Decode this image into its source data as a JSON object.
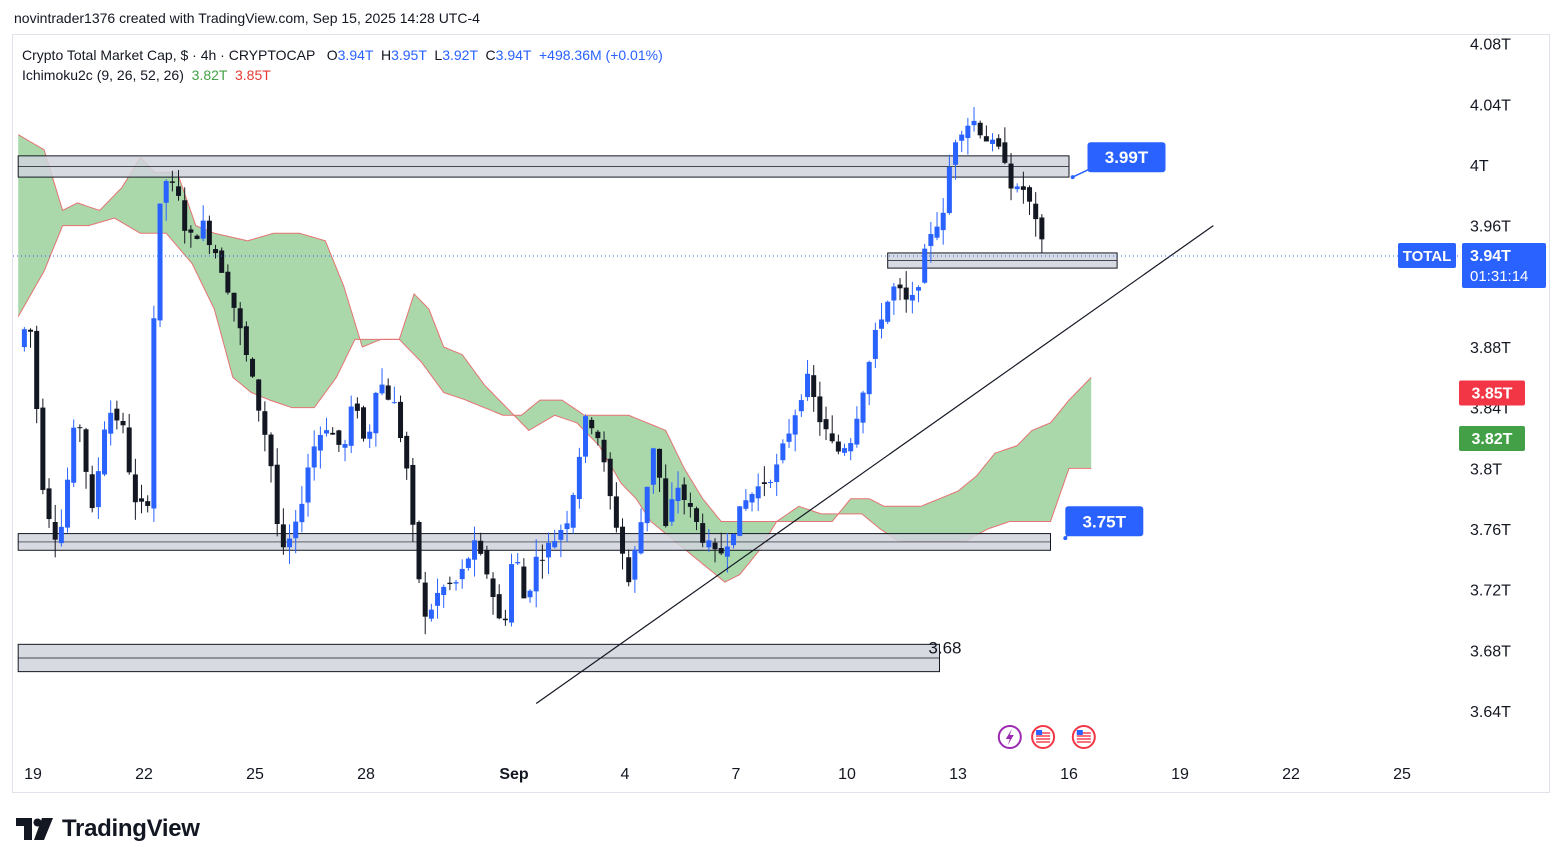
{
  "author_line": "novintrader1376 created with TradingView.com, Sep 15, 2025 14:28 UTC-4",
  "legend": {
    "symbol": "Crypto Total Market Cap, $ · 4h · CRYPTOCAP",
    "o_label": "O",
    "o_value": "3.94T",
    "h_label": "H",
    "h_value": "3.95T",
    "l_label": "L",
    "l_value": "3.92T",
    "c_label": "C",
    "c_value": "3.94T",
    "change": "+498.36M (+0.01%)",
    "indicator": "Ichimoku2c (9, 26, 52, 26)",
    "ind_v1": "3.82T",
    "ind_v2": "3.85T"
  },
  "brand": "TradingView",
  "colors": {
    "up": "#2962ff",
    "down": "#131722",
    "cloud_fill": "#a5d6a7",
    "cloud_edge": "#e57373",
    "callout": "#2962ff",
    "badge_red": "#f23645",
    "badge_green": "#43a047"
  },
  "chart_data": {
    "type": "candlestick",
    "ylim": [
      3.625,
      4.09
    ],
    "y_ticks": [
      {
        "v": 4.08,
        "label": "4.08T"
      },
      {
        "v": 4.04,
        "label": "4.04T"
      },
      {
        "v": 4.0,
        "label": "4T"
      },
      {
        "v": 3.96,
        "label": "3.96T"
      },
      {
        "v": 3.88,
        "label": "3.88T"
      },
      {
        "v": 3.84,
        "label": "3.84T"
      },
      {
        "v": 3.8,
        "label": "3.8T"
      },
      {
        "v": 3.76,
        "label": "3.76T"
      },
      {
        "v": 3.72,
        "label": "3.72T"
      },
      {
        "v": 3.68,
        "label": "3.68T"
      },
      {
        "v": 3.64,
        "label": "3.64T"
      }
    ],
    "x_ticks": [
      {
        "t": 19,
        "label": "19"
      },
      {
        "t": 22,
        "label": "22"
      },
      {
        "t": 25,
        "label": "25"
      },
      {
        "t": 28,
        "label": "28"
      },
      {
        "t": 32,
        "label": "Sep"
      },
      {
        "t": 35,
        "label": "4"
      },
      {
        "t": 38,
        "label": "7"
      },
      {
        "t": 41,
        "label": "10"
      },
      {
        "t": 44,
        "label": "13"
      },
      {
        "t": 47,
        "label": "16"
      },
      {
        "t": 50,
        "label": "19"
      },
      {
        "t": 53,
        "label": "22"
      },
      {
        "t": 56,
        "label": "25"
      }
    ],
    "x_unit": "days since Aug 0 (Aug 19 = 19, Sep 1 = 32)",
    "xlim": [
      18.6,
      57.0
    ],
    "anchors": [
      {
        "t": 18.6,
        "p": 3.88
      },
      {
        "t": 18.9,
        "p": 3.9
      },
      {
        "t": 19.3,
        "p": 3.78
      },
      {
        "t": 19.7,
        "p": 3.75
      },
      {
        "t": 20.2,
        "p": 3.84
      },
      {
        "t": 20.6,
        "p": 3.77
      },
      {
        "t": 21.0,
        "p": 3.84
      },
      {
        "t": 21.4,
        "p": 3.83
      },
      {
        "t": 21.8,
        "p": 3.77
      },
      {
        "t": 22.1,
        "p": 3.78
      },
      {
        "t": 22.35,
        "p": 3.96
      },
      {
        "t": 22.6,
        "p": 3.99
      },
      {
        "t": 22.9,
        "p": 3.98
      },
      {
        "t": 23.2,
        "p": 3.95
      },
      {
        "t": 23.6,
        "p": 3.96
      },
      {
        "t": 24.0,
        "p": 3.94
      },
      {
        "t": 24.4,
        "p": 3.91
      },
      {
        "t": 24.8,
        "p": 3.87
      },
      {
        "t": 25.1,
        "p": 3.84
      },
      {
        "t": 25.4,
        "p": 3.81
      },
      {
        "t": 25.7,
        "p": 3.74
      },
      {
        "t": 26.1,
        "p": 3.76
      },
      {
        "t": 26.5,
        "p": 3.81
      },
      {
        "t": 26.9,
        "p": 3.83
      },
      {
        "t": 27.4,
        "p": 3.81
      },
      {
        "t": 27.7,
        "p": 3.85
      },
      {
        "t": 28.0,
        "p": 3.81
      },
      {
        "t": 28.3,
        "p": 3.86
      },
      {
        "t": 28.8,
        "p": 3.84
      },
      {
        "t": 29.1,
        "p": 3.8
      },
      {
        "t": 29.3,
        "p": 3.75
      },
      {
        "t": 29.6,
        "p": 3.7
      },
      {
        "t": 30.0,
        "p": 3.72
      },
      {
        "t": 30.5,
        "p": 3.725
      },
      {
        "t": 30.9,
        "p": 3.75
      },
      {
        "t": 31.3,
        "p": 3.73
      },
      {
        "t": 31.7,
        "p": 3.69
      },
      {
        "t": 32.0,
        "p": 3.75
      },
      {
        "t": 32.3,
        "p": 3.71
      },
      {
        "t": 32.6,
        "p": 3.74
      },
      {
        "t": 33.0,
        "p": 3.75
      },
      {
        "t": 33.5,
        "p": 3.77
      },
      {
        "t": 33.9,
        "p": 3.83
      },
      {
        "t": 34.2,
        "p": 3.83
      },
      {
        "t": 34.6,
        "p": 3.78
      },
      {
        "t": 34.8,
        "p": 3.76
      },
      {
        "t": 35.1,
        "p": 3.725
      },
      {
        "t": 35.4,
        "p": 3.76
      },
      {
        "t": 35.8,
        "p": 3.82
      },
      {
        "t": 36.1,
        "p": 3.76
      },
      {
        "t": 36.4,
        "p": 3.79
      },
      {
        "t": 36.8,
        "p": 3.77
      },
      {
        "t": 37.2,
        "p": 3.75
      },
      {
        "t": 37.5,
        "p": 3.74
      },
      {
        "t": 37.9,
        "p": 3.76
      },
      {
        "t": 38.3,
        "p": 3.78
      },
      {
        "t": 38.7,
        "p": 3.79
      },
      {
        "t": 39.1,
        "p": 3.8
      },
      {
        "t": 39.5,
        "p": 3.83
      },
      {
        "t": 39.9,
        "p": 3.86
      },
      {
        "t": 40.3,
        "p": 3.83
      },
      {
        "t": 40.7,
        "p": 3.81
      },
      {
        "t": 41.1,
        "p": 3.82
      },
      {
        "t": 41.5,
        "p": 3.86
      },
      {
        "t": 41.9,
        "p": 3.9
      },
      {
        "t": 42.3,
        "p": 3.92
      },
      {
        "t": 42.7,
        "p": 3.905
      },
      {
        "t": 43.0,
        "p": 3.93
      },
      {
        "t": 43.3,
        "p": 3.96
      },
      {
        "t": 43.6,
        "p": 3.965
      },
      {
        "t": 43.85,
        "p": 4.015
      },
      {
        "t": 44.1,
        "p": 4.025
      },
      {
        "t": 44.4,
        "p": 4.03
      },
      {
        "t": 44.7,
        "p": 4.02
      },
      {
        "t": 45.0,
        "p": 4.01
      },
      {
        "t": 45.3,
        "p": 4.005
      },
      {
        "t": 45.5,
        "p": 3.98
      },
      {
        "t": 45.8,
        "p": 3.985
      },
      {
        "t": 46.1,
        "p": 3.96
      },
      {
        "t": 46.35,
        "p": 3.94
      }
    ],
    "cloud": {
      "span_a": [
        {
          "t": 18.6,
          "p": 4.02
        },
        {
          "t": 19.3,
          "p": 4.01
        },
        {
          "t": 19.8,
          "p": 3.97
        },
        {
          "t": 20.2,
          "p": 3.975
        },
        {
          "t": 20.8,
          "p": 3.97
        },
        {
          "t": 21.4,
          "p": 3.985
        },
        {
          "t": 21.9,
          "p": 4.005
        },
        {
          "t": 22.3,
          "p": 3.995
        },
        {
          "t": 22.9,
          "p": 3.995
        },
        {
          "t": 23.4,
          "p": 3.96
        },
        {
          "t": 23.9,
          "p": 3.955
        },
        {
          "t": 24.8,
          "p": 3.95
        },
        {
          "t": 25.5,
          "p": 3.955
        },
        {
          "t": 26.2,
          "p": 3.955
        },
        {
          "t": 26.9,
          "p": 3.95
        },
        {
          "t": 27.4,
          "p": 3.92
        },
        {
          "t": 27.9,
          "p": 3.88
        },
        {
          "t": 28.4,
          "p": 3.885
        },
        {
          "t": 28.9,
          "p": 3.885
        },
        {
          "t": 29.5,
          "p": 3.87
        },
        {
          "t": 30.1,
          "p": 3.85
        },
        {
          "t": 30.7,
          "p": 3.845
        },
        {
          "t": 31.2,
          "p": 3.84
        },
        {
          "t": 31.7,
          "p": 3.835
        },
        {
          "t": 32.2,
          "p": 3.835
        },
        {
          "t": 32.7,
          "p": 3.845
        },
        {
          "t": 33.3,
          "p": 3.845
        },
        {
          "t": 33.9,
          "p": 3.835
        },
        {
          "t": 34.5,
          "p": 3.835
        },
        {
          "t": 35.1,
          "p": 3.835
        },
        {
          "t": 35.6,
          "p": 3.83
        },
        {
          "t": 36.1,
          "p": 3.825
        },
        {
          "t": 36.6,
          "p": 3.8
        },
        {
          "t": 37.1,
          "p": 3.78
        },
        {
          "t": 37.6,
          "p": 3.765
        },
        {
          "t": 38.0,
          "p": 3.765
        },
        {
          "t": 38.5,
          "p": 3.765
        },
        {
          "t": 39.1,
          "p": 3.765
        },
        {
          "t": 39.6,
          "p": 3.765
        },
        {
          "t": 40.1,
          "p": 3.765
        },
        {
          "t": 40.6,
          "p": 3.765
        },
        {
          "t": 41.1,
          "p": 3.78
        },
        {
          "t": 41.6,
          "p": 3.78
        },
        {
          "t": 42.0,
          "p": 3.775
        },
        {
          "t": 42.5,
          "p": 3.775
        },
        {
          "t": 43.0,
          "p": 3.775
        },
        {
          "t": 43.5,
          "p": 3.78
        },
        {
          "t": 44.0,
          "p": 3.785
        },
        {
          "t": 44.5,
          "p": 3.795
        },
        {
          "t": 45.0,
          "p": 3.81
        },
        {
          "t": 45.6,
          "p": 3.815
        },
        {
          "t": 46.0,
          "p": 3.825
        },
        {
          "t": 46.5,
          "p": 3.83
        },
        {
          "t": 47.0,
          "p": 3.845
        },
        {
          "t": 47.6,
          "p": 3.86
        }
      ],
      "span_b": [
        {
          "t": 18.6,
          "p": 3.9
        },
        {
          "t": 19.3,
          "p": 3.93
        },
        {
          "t": 19.8,
          "p": 3.96
        },
        {
          "t": 20.5,
          "p": 3.96
        },
        {
          "t": 21.2,
          "p": 3.965
        },
        {
          "t": 21.9,
          "p": 3.955
        },
        {
          "t": 22.6,
          "p": 3.955
        },
        {
          "t": 23.3,
          "p": 3.935
        },
        {
          "t": 23.9,
          "p": 3.905
        },
        {
          "t": 24.4,
          "p": 3.86
        },
        {
          "t": 24.9,
          "p": 3.85
        },
        {
          "t": 25.4,
          "p": 3.845
        },
        {
          "t": 26.0,
          "p": 3.84
        },
        {
          "t": 26.6,
          "p": 3.84
        },
        {
          "t": 27.2,
          "p": 3.86
        },
        {
          "t": 27.7,
          "p": 3.885
        },
        {
          "t": 28.3,
          "p": 3.885
        },
        {
          "t": 28.9,
          "p": 3.885
        },
        {
          "t": 29.3,
          "p": 3.915
        },
        {
          "t": 29.7,
          "p": 3.905
        },
        {
          "t": 30.1,
          "p": 3.88
        },
        {
          "t": 30.6,
          "p": 3.875
        },
        {
          "t": 31.2,
          "p": 3.855
        },
        {
          "t": 31.8,
          "p": 3.84
        },
        {
          "t": 32.4,
          "p": 3.825
        },
        {
          "t": 33.1,
          "p": 3.835
        },
        {
          "t": 33.7,
          "p": 3.83
        },
        {
          "t": 34.3,
          "p": 3.815
        },
        {
          "t": 34.9,
          "p": 3.79
        },
        {
          "t": 35.3,
          "p": 3.78
        },
        {
          "t": 35.7,
          "p": 3.765
        },
        {
          "t": 36.2,
          "p": 3.755
        },
        {
          "t": 36.7,
          "p": 3.745
        },
        {
          "t": 37.2,
          "p": 3.735
        },
        {
          "t": 37.7,
          "p": 3.725
        },
        {
          "t": 38.1,
          "p": 3.73
        },
        {
          "t": 38.6,
          "p": 3.745
        },
        {
          "t": 39.1,
          "p": 3.765
        },
        {
          "t": 39.7,
          "p": 3.775
        },
        {
          "t": 40.3,
          "p": 3.77
        },
        {
          "t": 40.9,
          "p": 3.77
        },
        {
          "t": 41.4,
          "p": 3.77
        },
        {
          "t": 41.9,
          "p": 3.76
        },
        {
          "t": 42.4,
          "p": 3.752
        },
        {
          "t": 43.0,
          "p": 3.752
        },
        {
          "t": 43.6,
          "p": 3.752
        },
        {
          "t": 44.2,
          "p": 3.752
        },
        {
          "t": 44.8,
          "p": 3.76
        },
        {
          "t": 45.4,
          "p": 3.765
        },
        {
          "t": 46.0,
          "p": 3.765
        },
        {
          "t": 46.5,
          "p": 3.765
        },
        {
          "t": 47.0,
          "p": 3.8
        },
        {
          "t": 47.6,
          "p": 3.8
        }
      ]
    },
    "zones": [
      {
        "t1": 18.6,
        "t2": 47.0,
        "p1": 3.992,
        "p2": 4.006
      },
      {
        "t1": 18.6,
        "t2": 46.5,
        "p1": 3.746,
        "p2": 3.757
      },
      {
        "t1": 18.6,
        "t2": 43.5,
        "p1": 3.666,
        "p2": 3.684
      },
      {
        "t1": 42.1,
        "t2": 48.3,
        "p1": 3.932,
        "p2": 3.942
      }
    ],
    "trendline": {
      "t1": 32.6,
      "p1": 3.645,
      "t2": 50.9,
      "p2": 3.96
    },
    "last_price": 3.94,
    "zone_label": "3.68",
    "callouts": [
      {
        "label": "3.99T",
        "p": 3.99
      },
      {
        "label": "3.75T",
        "p": 3.75
      }
    ],
    "badges": {
      "total_label": "TOTAL",
      "price_label": "3.94T",
      "countdown": "01:31:14",
      "red_label": "3.85T",
      "green_label": "3.82T"
    }
  }
}
